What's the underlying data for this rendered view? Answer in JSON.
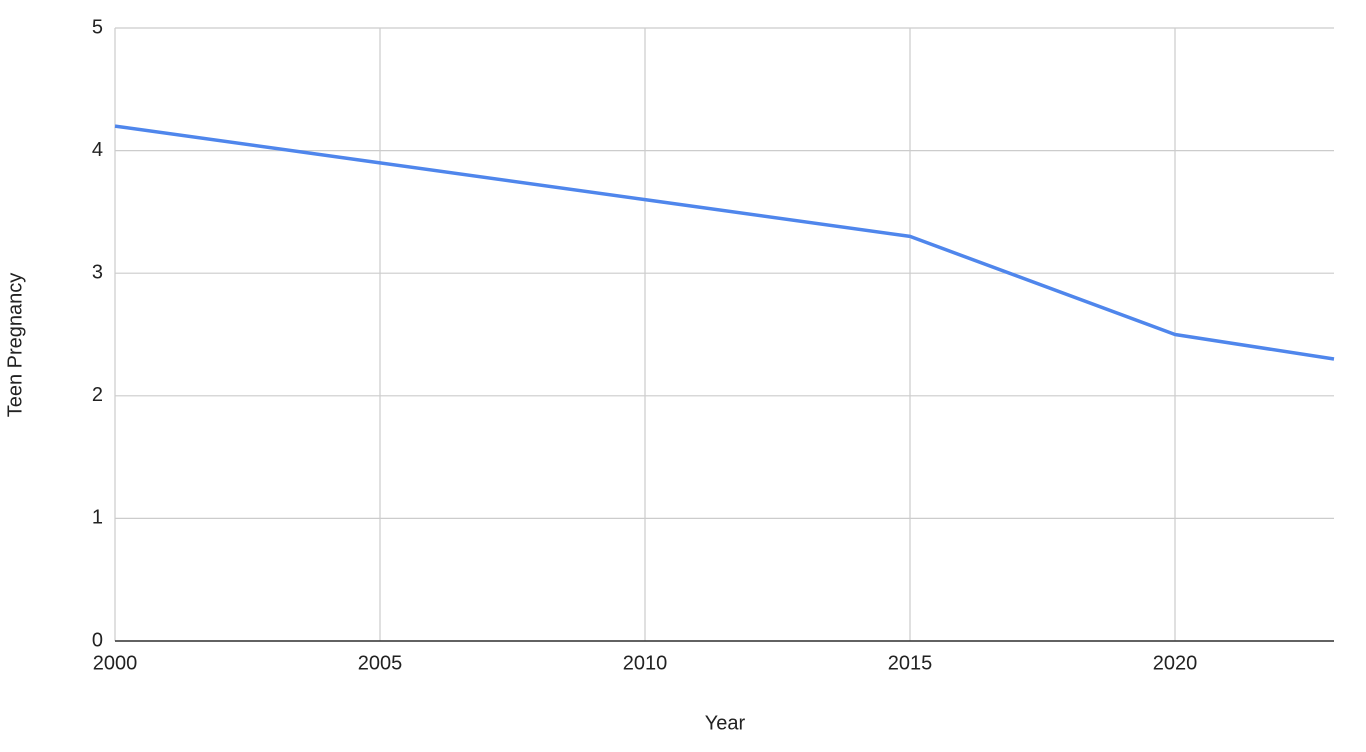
{
  "chart_data": {
    "type": "line",
    "x_label": "Year",
    "y_label": "Teen Pregnancy",
    "x": [
      2000,
      2005,
      2010,
      2015,
      2020,
      2023
    ],
    "series": [
      {
        "name": "Teen Pregnancy",
        "color": "#4f86ec",
        "values": [
          4.2,
          3.9,
          3.6,
          3.3,
          2.5,
          2.3
        ]
      }
    ],
    "xlim": [
      2000,
      2023
    ],
    "xticks": [
      2000,
      2005,
      2010,
      2015,
      2020
    ],
    "ylim": [
      0,
      5
    ],
    "yticks": [
      0,
      1,
      2,
      3,
      4,
      5
    ],
    "grid": true
  }
}
